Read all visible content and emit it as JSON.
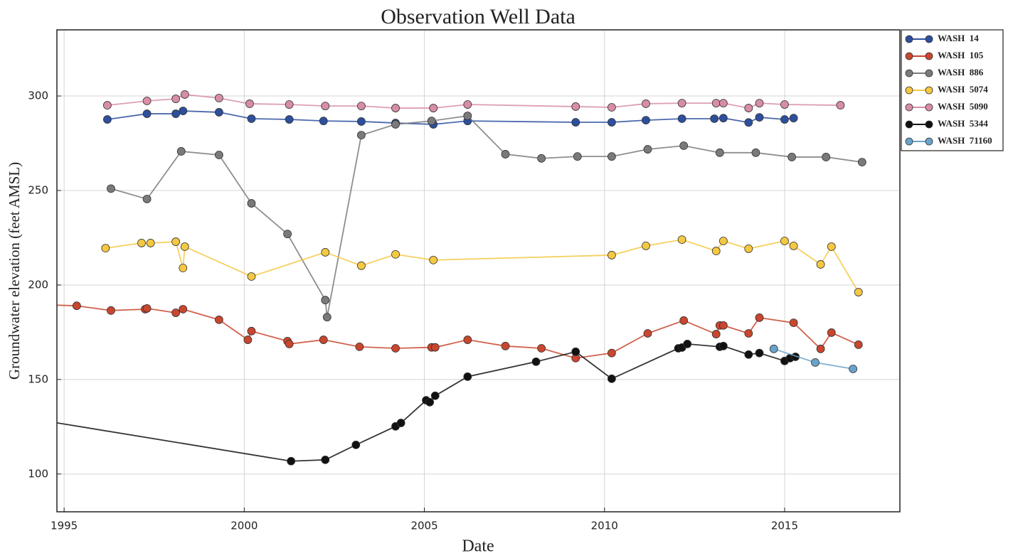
{
  "chart_data": {
    "type": "line",
    "title": "Observation Well Data",
    "x_label": "Date",
    "y_label": "Groundwater elevation (feet AMSL)",
    "xlim": [
      1994.8,
      2018.2
    ],
    "ylim": [
      80,
      335
    ],
    "xticks": [
      1995,
      2000,
      2005,
      2010,
      2015
    ],
    "yticks": [
      100,
      150,
      200,
      250,
      300
    ],
    "grid": true,
    "legend": "outside-upper-right",
    "series": [
      {
        "name": "WASH  14",
        "color": "#2d4f9e",
        "x": [
          1996.2,
          1997.3,
          1998.1,
          1998.3,
          1999.3,
          2000.2,
          2001.25,
          2002.2,
          2003.25,
          2004.2,
          2005.25,
          2006.2,
          2009.2,
          2010.2,
          2011.15,
          2012.15,
          2013.05,
          2013.3,
          2014.0,
          2014.3,
          2015.0,
          2015.25
        ],
        "values": [
          287.6,
          290.6,
          290.6,
          292.1,
          291.4,
          288,
          287.6,
          286.8,
          286.5,
          285.7,
          285,
          286.8,
          286.1,
          286.1,
          287.2,
          288,
          288,
          288.3,
          286,
          288.7,
          287.6,
          288.3
        ]
      },
      {
        "name": "WASH  105",
        "color": "#c9462f",
        "x": [
          1994.5,
          1995.35,
          1996.3,
          1997.25,
          1997.3,
          1998.1,
          1998.3,
          1999.3,
          2000.1,
          2000.2,
          2001.2,
          2001.25,
          2002.2,
          2003.2,
          2004.2,
          2005.2,
          2005.3,
          2006.2,
          2007.25,
          2008.25,
          2009.2,
          2010.2,
          2011.2,
          2012.2,
          2013.1,
          2013.2,
          2013.3,
          2014.0,
          2014.3,
          2015.25,
          2016.0,
          2016.3,
          2017.05
        ],
        "values": [
          189.5,
          189,
          186.5,
          187.2,
          187.6,
          185.3,
          187.2,
          181.6,
          171,
          175.6,
          170.3,
          168.8,
          171,
          167.3,
          166.5,
          167,
          167,
          171,
          167.7,
          166.5,
          161.3,
          164,
          174.4,
          181.2,
          174,
          178.6,
          178.6,
          174.4,
          182.7,
          180,
          166.2,
          174.8,
          168.4
        ]
      },
      {
        "name": "WASH  886",
        "color": "#7a7a7a",
        "x": [
          1996.3,
          1997.3,
          1998.25,
          1999.3,
          2000.2,
          2001.2,
          2002.25,
          2002.3,
          2003.25,
          2004.2,
          2005.2,
          2006.2,
          2007.25,
          2008.25,
          2009.25,
          2010.2,
          2011.2,
          2012.2,
          2013.2,
          2014.2,
          2015.2,
          2016.15,
          2017.15
        ],
        "values": [
          251,
          245.5,
          270.7,
          268.8,
          243.2,
          227,
          192,
          183,
          279.3,
          285,
          286.8,
          289.5,
          269.2,
          267,
          268,
          268,
          271.8,
          273.7,
          270,
          270,
          267.7,
          267.7,
          265
        ]
      },
      {
        "name": "WASH  5074",
        "color": "#f5c842",
        "x": [
          1996.15,
          1997.15,
          1997.4,
          1998.1,
          1998.3,
          1998.35,
          2000.2,
          2002.25,
          2003.25,
          2004.2,
          2005.25,
          2010.2,
          2011.15,
          2012.15,
          2013.1,
          2013.3,
          2014.0,
          2015.0,
          2015.25,
          2016.0,
          2016.3,
          2017.05
        ],
        "values": [
          219.5,
          222.2,
          222.2,
          222.9,
          209,
          220.3,
          204.5,
          217.3,
          210.2,
          216.2,
          213.2,
          215.8,
          220.7,
          224,
          218,
          223.3,
          219.2,
          223.3,
          220.7,
          210.9,
          220.3,
          196.2
        ]
      },
      {
        "name": "WASH  5090",
        "color": "#d78ea4",
        "x": [
          1996.2,
          1997.3,
          1998.1,
          1998.35,
          1999.3,
          2000.15,
          2001.25,
          2002.25,
          2003.25,
          2004.2,
          2005.25,
          2006.2,
          2009.2,
          2010.2,
          2011.15,
          2012.15,
          2013.1,
          2013.3,
          2014.0,
          2014.3,
          2015.0,
          2016.55
        ],
        "values": [
          295.1,
          297.4,
          298.5,
          300.8,
          298.9,
          295.9,
          295.5,
          294.7,
          294.7,
          293.6,
          293.6,
          295.5,
          294.4,
          294,
          295.9,
          296.2,
          296.2,
          296.2,
          293.6,
          296.2,
          295.5,
          295.1
        ]
      },
      {
        "name": "WASH  5344",
        "color": "#111111",
        "x": [
          1994.5,
          2001.3,
          2002.25,
          2003.1,
          2004.2,
          2004.35,
          2005.05,
          2005.15,
          2005.3,
          2006.2,
          2008.1,
          2009.2,
          2010.2,
          2012.05,
          2012.15,
          2012.3,
          2013.2,
          2013.3,
          2014.0,
          2014.3,
          2015.0,
          2015.15,
          2015.3
        ],
        "values": [
          128,
          106.8,
          107.5,
          115.4,
          125.2,
          127,
          139,
          138,
          141.4,
          151.5,
          159.4,
          164.7,
          150.4,
          166.5,
          166.9,
          168.8,
          167.3,
          167.7,
          163.2,
          164,
          159.8,
          161.3,
          162
        ]
      },
      {
        "name": "WASH  71160",
        "color": "#6aa3c9",
        "x": [
          2014.7,
          2015.85,
          2016.9
        ],
        "values": [
          166.2,
          159,
          155.6
        ]
      }
    ]
  }
}
